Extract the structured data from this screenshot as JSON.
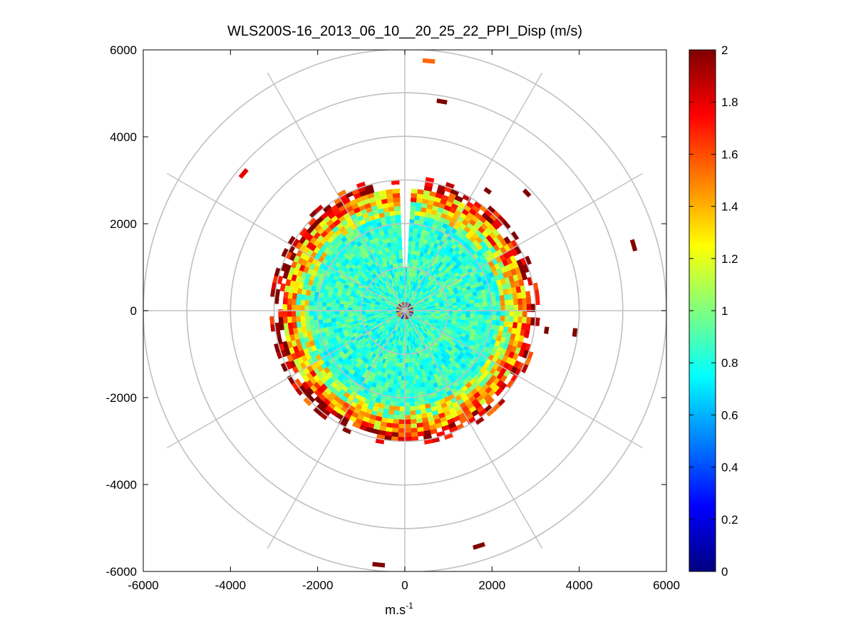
{
  "chart_data": {
    "type": "heatmap",
    "subtype": "polar-ppi",
    "title": "WLS200S-16_2013_06_10__20_25_22_PPI_Disp (m/s)",
    "xlabel": {
      "base": "m.s",
      "sup": "-1"
    },
    "ylabel": "",
    "xlim": [
      -6000,
      6000
    ],
    "ylim": [
      -6000,
      6000
    ],
    "xticks": [
      "-6000",
      "-4000",
      "-2000",
      "0",
      "2000",
      "4000",
      "6000"
    ],
    "yticks": [
      "6000",
      "4000",
      "2000",
      "0",
      "-2000",
      "-4000",
      "-6000"
    ],
    "xtick_values": [
      -6000,
      -4000,
      -2000,
      0,
      2000,
      4000,
      6000
    ],
    "ytick_values": [
      6000,
      4000,
      2000,
      0,
      -2000,
      -4000,
      -6000
    ],
    "polar_grid": {
      "ring_radii": [
        1000,
        2000,
        3000,
        4000,
        5000,
        6000
      ],
      "spoke_angles_deg": [
        0,
        30,
        60,
        90,
        120,
        150,
        180,
        210,
        240,
        270,
        300,
        330
      ],
      "color": "#c0c0c0"
    },
    "colorbar": {
      "colormap": "jet",
      "range": [
        0,
        2
      ],
      "ticks": [
        "0",
        "0.2",
        "0.4",
        "0.6",
        "0.8",
        "1",
        "1.2",
        "1.4",
        "1.6",
        "1.8",
        "2"
      ],
      "tick_values": [
        0,
        0.2,
        0.4,
        0.6,
        0.8,
        1.0,
        1.2,
        1.4,
        1.6,
        1.8,
        2.0
      ]
    },
    "field": {
      "description_values": "dispersion (m/s) by range and azimuth",
      "core_max_range": 2200,
      "core_value": 0.85,
      "ring_values": [
        {
          "range": [
            2200,
            2500
          ],
          "value": 1.15
        },
        {
          "range": [
            2500,
            2750
          ],
          "value": 1.45
        },
        {
          "range": [
            2750,
            3050
          ],
          "value": 1.85
        }
      ],
      "gap_azimuth_deg": [
        -3,
        1
      ],
      "gap_min_range": 1000
    },
    "outliers": [
      {
        "x": 550,
        "y": 5730,
        "value": 1.55
      },
      {
        "x": 850,
        "y": 4800,
        "value": 2.0
      },
      {
        "x": -3700,
        "y": 3150,
        "value": 1.8
      },
      {
        "x": 1900,
        "y": 2750,
        "value": 2.0
      },
      {
        "x": 2800,
        "y": 2700,
        "value": 2.0
      },
      {
        "x": 5250,
        "y": 1500,
        "value": 2.0
      },
      {
        "x": 3900,
        "y": -500,
        "value": 2.0
      },
      {
        "x": 1700,
        "y": -5400,
        "value": 2.0
      },
      {
        "x": -600,
        "y": -5830,
        "value": 2.0
      },
      {
        "x": 3250,
        "y": -450,
        "value": 2.0
      }
    ]
  }
}
